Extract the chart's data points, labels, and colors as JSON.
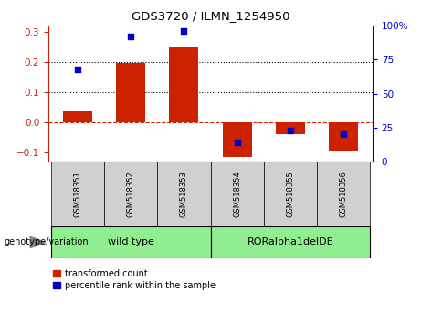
{
  "title": "GDS3720 / ILMN_1254950",
  "samples": [
    "GSM518351",
    "GSM518352",
    "GSM518353",
    "GSM518354",
    "GSM518355",
    "GSM518356"
  ],
  "group_labels": [
    "wild type",
    "RORalpha1delDE"
  ],
  "transformed_counts": [
    0.035,
    0.197,
    0.248,
    -0.115,
    -0.038,
    -0.098
  ],
  "percentile_ranks": [
    68,
    92,
    96,
    14,
    23,
    20
  ],
  "bar_color": "#cc2200",
  "dot_color": "#0000cc",
  "ylim_left": [
    -0.13,
    0.32
  ],
  "ylim_right": [
    0,
    100
  ],
  "yticks_left": [
    -0.1,
    0.0,
    0.1,
    0.2,
    0.3
  ],
  "yticks_right": [
    0,
    25,
    50,
    75,
    100
  ],
  "hlines": [
    0.1,
    0.2
  ],
  "legend_tc": "transformed count",
  "legend_pr": "percentile rank within the sample",
  "genotype_label": "genotype/variation",
  "plot_bg": "#ffffff",
  "tick_area_bg": "#d0d0d0",
  "group_bg": "#90ee90"
}
